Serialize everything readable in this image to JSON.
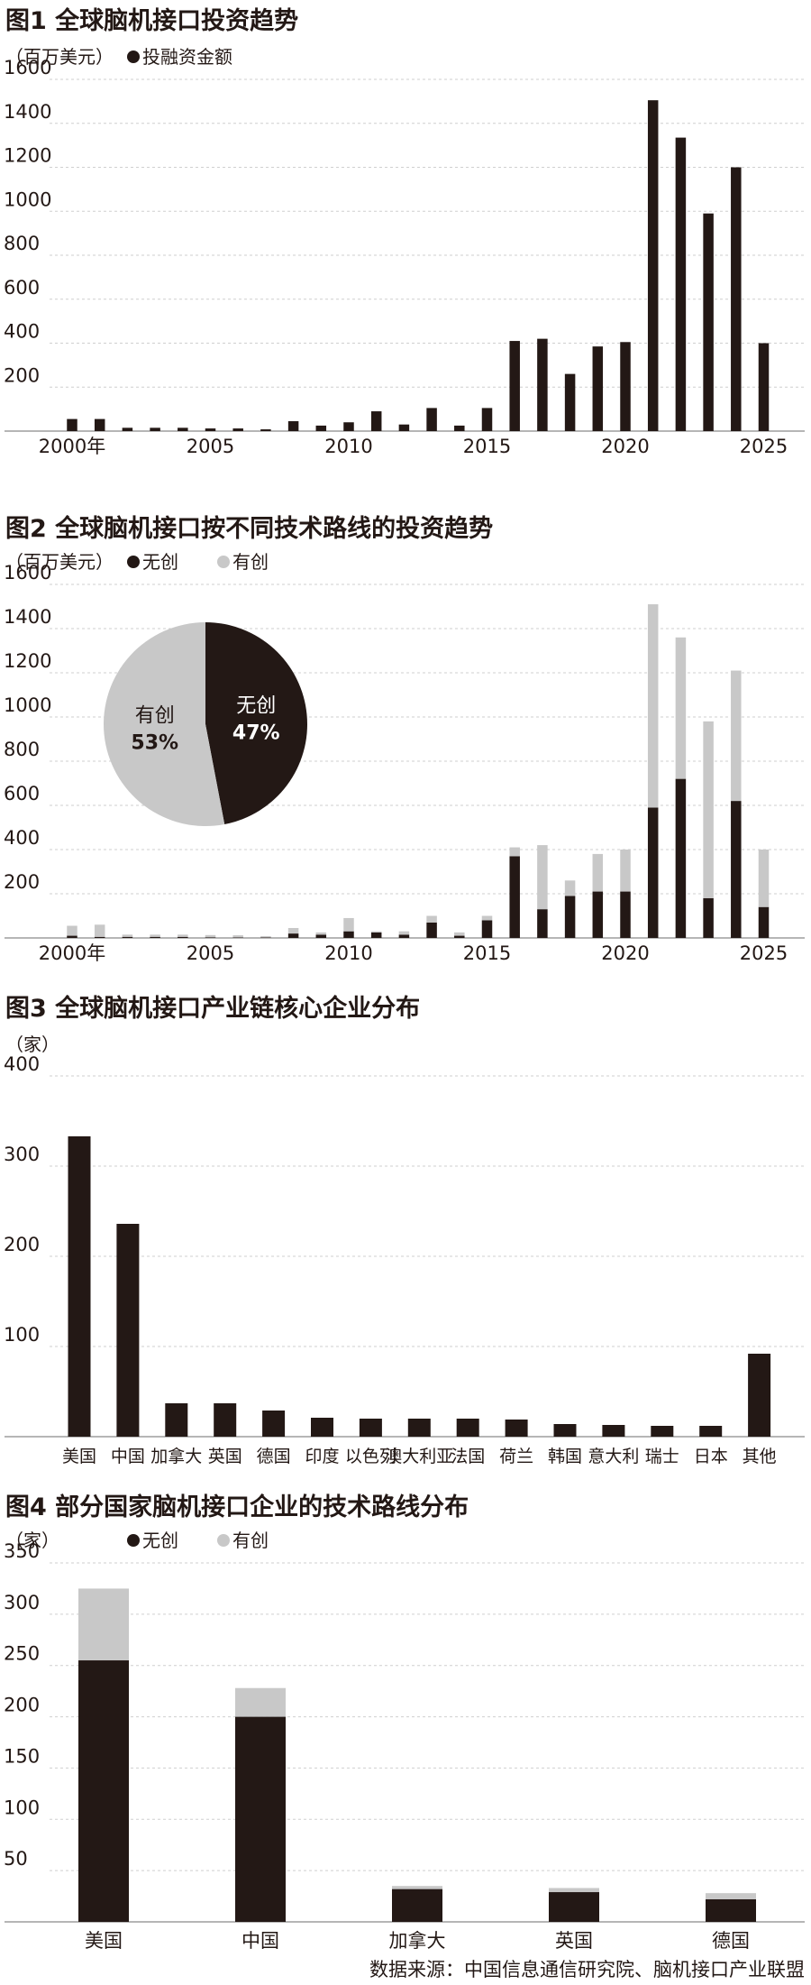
{
  "chart_data": [
    {
      "type": "bar",
      "title": "图1 全球脑机接口投资趋势",
      "unit": "（百万美元）",
      "legend": [
        {
          "label": "●投融资金额",
          "color": "#231815"
        }
      ],
      "x": [
        2000,
        2001,
        2002,
        2003,
        2004,
        2005,
        2006,
        2007,
        2008,
        2009,
        2010,
        2011,
        2012,
        2013,
        2014,
        2015,
        2016,
        2017,
        2018,
        2019,
        2020,
        2021,
        2022,
        2023,
        2024,
        2025
      ],
      "values": [
        55,
        55,
        15,
        15,
        15,
        12,
        12,
        8,
        45,
        25,
        40,
        90,
        30,
        105,
        25,
        105,
        410,
        420,
        260,
        385,
        405,
        1505,
        1335,
        990,
        1200,
        400
      ],
      "x_tick_labels": [
        {
          "x": 2000,
          "label": "2000年"
        },
        {
          "x": 2005,
          "label": "2005"
        },
        {
          "x": 2010,
          "label": "2010"
        },
        {
          "x": 2015,
          "label": "2015"
        },
        {
          "x": 2020,
          "label": "2020"
        },
        {
          "x": 2025,
          "label": "2025"
        }
      ],
      "y_ticks": [
        200,
        400,
        600,
        800,
        1000,
        1200,
        1400,
        1600
      ],
      "ylim": [
        0,
        1600
      ],
      "color": "#231815"
    },
    {
      "type": "bar",
      "stacked": true,
      "title": "图2 全球脑机接口按不同技术路线的投资趋势",
      "unit": "（百万美元）",
      "legend": [
        {
          "label": "●无创",
          "color": "#231815"
        },
        {
          "label": "●有创",
          "color": "#c8c8c8"
        }
      ],
      "x": [
        2000,
        2001,
        2002,
        2003,
        2004,
        2005,
        2006,
        2007,
        2008,
        2009,
        2010,
        2011,
        2012,
        2013,
        2014,
        2015,
        2016,
        2017,
        2018,
        2019,
        2020,
        2021,
        2022,
        2023,
        2024,
        2025
      ],
      "series": [
        {
          "name": "无创",
          "color": "#231815",
          "values": [
            10,
            5,
            5,
            5,
            5,
            3,
            2,
            2,
            20,
            15,
            30,
            25,
            15,
            70,
            10,
            80,
            370,
            130,
            190,
            210,
            210,
            590,
            720,
            180,
            620,
            140
          ]
        },
        {
          "name": "有创",
          "color": "#c8c8c8",
          "values": [
            45,
            55,
            10,
            10,
            10,
            10,
            10,
            6,
            25,
            10,
            60,
            5,
            15,
            30,
            15,
            20,
            40,
            290,
            70,
            170,
            190,
            920,
            640,
            800,
            590,
            260
          ]
        }
      ],
      "x_tick_labels": [
        {
          "x": 2000,
          "label": "2000年"
        },
        {
          "x": 2005,
          "label": "2005"
        },
        {
          "x": 2010,
          "label": "2010"
        },
        {
          "x": 2015,
          "label": "2015"
        },
        {
          "x": 2020,
          "label": "2020"
        },
        {
          "x": 2025,
          "label": "2025"
        }
      ],
      "y_ticks": [
        200,
        400,
        600,
        800,
        1000,
        1200,
        1400,
        1600
      ],
      "ylim": [
        0,
        1600
      ],
      "inset_pie": {
        "type": "pie",
        "slices": [
          {
            "label": "无创",
            "pct_label": "47%",
            "value": 47,
            "color": "#231815"
          },
          {
            "label": "有创",
            "pct_label": "53%",
            "value": 53,
            "color": "#c8c8c8"
          }
        ]
      }
    },
    {
      "type": "bar",
      "title": "图3 全球脑机接口产业链核心企业分布",
      "unit": "（家）",
      "categories": [
        "美国",
        "中国",
        "加拿大",
        "英国",
        "德国",
        "印度",
        "以色列",
        "澳大利亚",
        "法国",
        "荷兰",
        "韩国",
        "意大利",
        "瑞士",
        "日本",
        "其他"
      ],
      "values": [
        333,
        236,
        37,
        37,
        29,
        21,
        20,
        20,
        20,
        19,
        14,
        13,
        12,
        12,
        92
      ],
      "y_ticks": [
        100,
        200,
        300,
        400
      ],
      "ylim": [
        0,
        400
      ],
      "color": "#231815"
    },
    {
      "type": "bar",
      "stacked": true,
      "title": "图4 部分国家脑机接口企业的技术路线分布",
      "unit": "（家）",
      "legend": [
        {
          "label": "●无创",
          "color": "#231815"
        },
        {
          "label": "●有创",
          "color": "#c8c8c8"
        }
      ],
      "categories": [
        "美国",
        "中国",
        "加拿大",
        "英国",
        "德国"
      ],
      "series": [
        {
          "name": "无创",
          "color": "#231815",
          "values": [
            255,
            200,
            32,
            29,
            22
          ]
        },
        {
          "name": "有创",
          "color": "#c8c8c8",
          "values": [
            70,
            28,
            3,
            4,
            6
          ]
        }
      ],
      "y_ticks": [
        50,
        100,
        150,
        200,
        250,
        300,
        350
      ],
      "ylim": [
        0,
        350
      ]
    }
  ],
  "source_note": "数据来源：中国信息通信研究院、脑机接口产业联盟"
}
